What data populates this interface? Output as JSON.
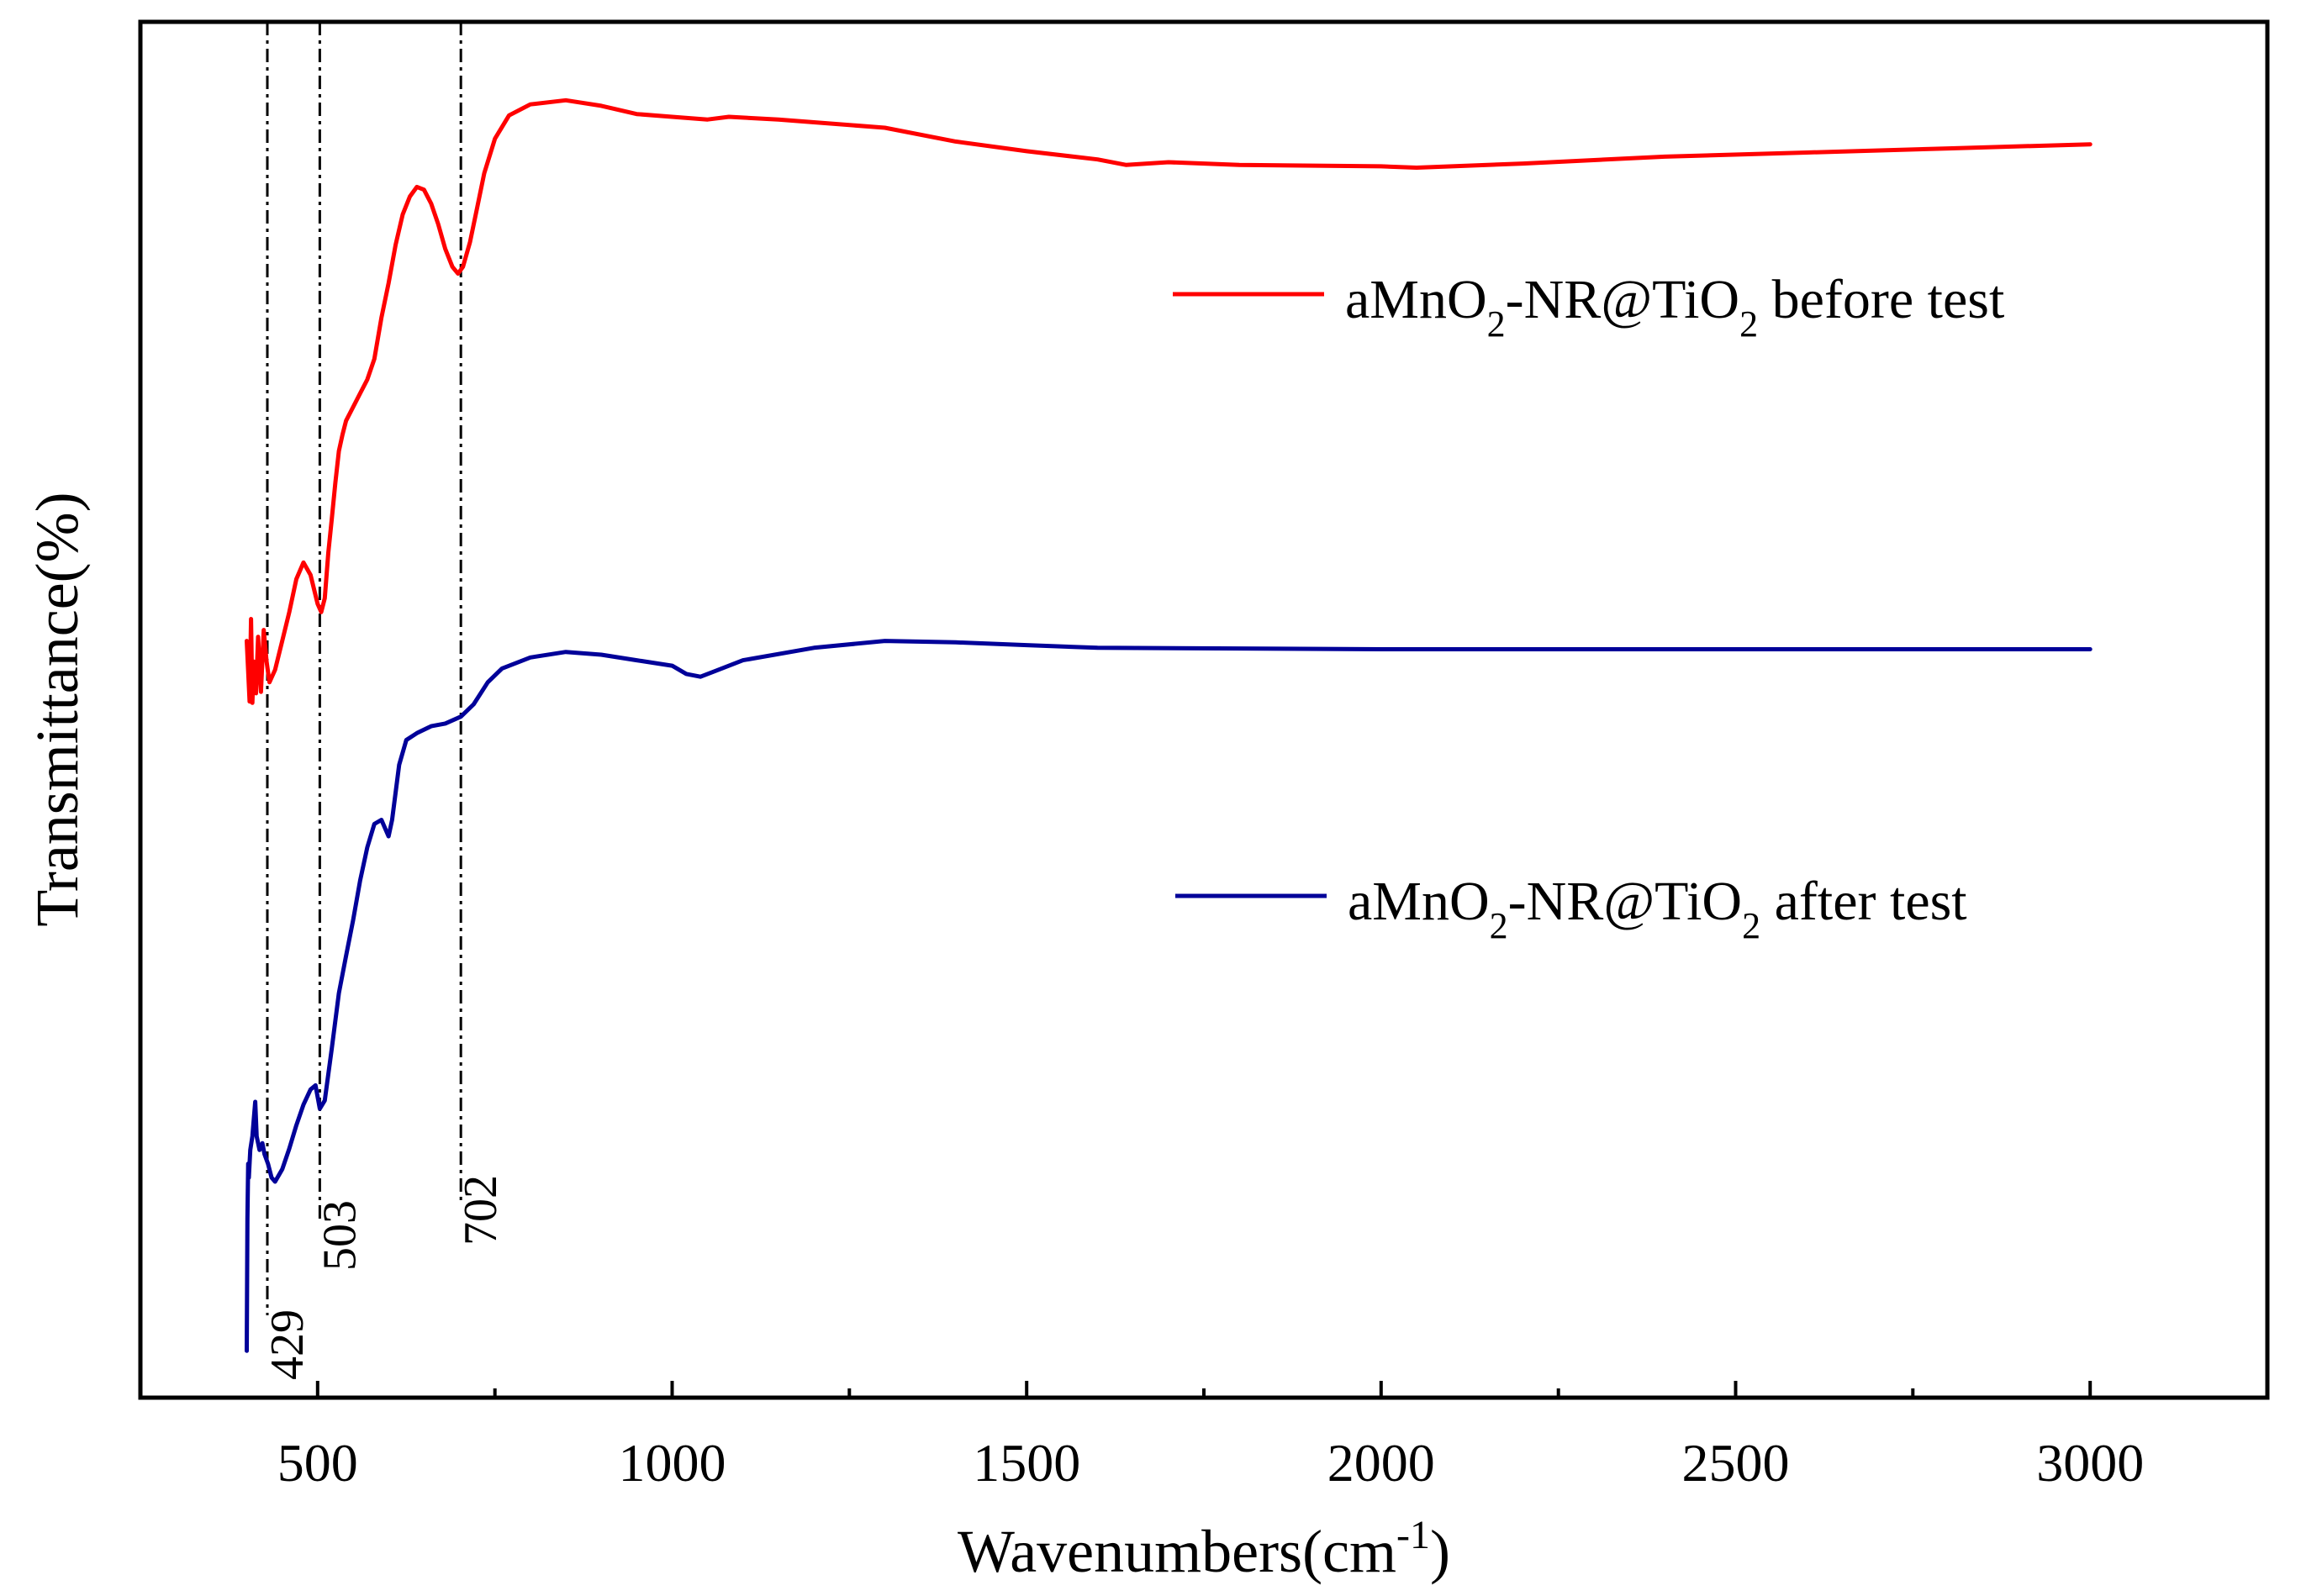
{
  "chart_data": {
    "type": "line",
    "title": "",
    "xlabel": {
      "main": "Wavenumbers(cm",
      "sup": "-1",
      "close": ")"
    },
    "ylabel": "Transmittance(%)",
    "xlim": [
      250,
      3250
    ],
    "ylim": [
      0,
      100
    ],
    "x_ticks": [
      500,
      1000,
      1500,
      2000,
      2500,
      3000
    ],
    "x_tick_labels": [
      "500",
      "1000",
      "1500",
      "2000",
      "2500",
      "3000"
    ],
    "y_ticks_shown": false,
    "grid": false,
    "legend_placement": "right",
    "reference_lines": [
      {
        "x": 429,
        "label": "429"
      },
      {
        "x": 503,
        "label": "503"
      },
      {
        "x": 702,
        "label": "702"
      }
    ],
    "series": [
      {
        "name": "before test",
        "legend": {
          "a": "aMnO",
          "s1": "2",
          "b": "-NR@TiO",
          "s2": "2",
          "c": " before test"
        },
        "color": "#ff0000",
        "points": [
          [
            400,
            55.0
          ],
          [
            404,
            50.6
          ],
          [
            406,
            56.6
          ],
          [
            408,
            50.5
          ],
          [
            410,
            53.5
          ],
          [
            413,
            51.2
          ],
          [
            416,
            55.3
          ],
          [
            420,
            51.3
          ],
          [
            424,
            55.8
          ],
          [
            428,
            53.5
          ],
          [
            432,
            52.0
          ],
          [
            440,
            52.9
          ],
          [
            450,
            55.0
          ],
          [
            460,
            57.1
          ],
          [
            470,
            59.5
          ],
          [
            480,
            60.7
          ],
          [
            490,
            59.8
          ],
          [
            500,
            57.7
          ],
          [
            505,
            57.1
          ],
          [
            510,
            58.1
          ],
          [
            515,
            61.4
          ],
          [
            520,
            63.9
          ],
          [
            525,
            66.5
          ],
          [
            530,
            68.8
          ],
          [
            535,
            70.0
          ],
          [
            540,
            71.0
          ],
          [
            550,
            72.0
          ],
          [
            560,
            73.0
          ],
          [
            570,
            74.0
          ],
          [
            580,
            75.5
          ],
          [
            590,
            78.5
          ],
          [
            600,
            81.0
          ],
          [
            610,
            83.8
          ],
          [
            620,
            86.0
          ],
          [
            630,
            87.3
          ],
          [
            640,
            88.0
          ],
          [
            650,
            87.8
          ],
          [
            660,
            86.8
          ],
          [
            670,
            85.3
          ],
          [
            680,
            83.5
          ],
          [
            690,
            82.2
          ],
          [
            698,
            81.7
          ],
          [
            705,
            82.2
          ],
          [
            715,
            84.0
          ],
          [
            725,
            86.5
          ],
          [
            735,
            89.0
          ],
          [
            750,
            91.5
          ],
          [
            770,
            93.2
          ],
          [
            800,
            94.0
          ],
          [
            850,
            94.3
          ],
          [
            900,
            93.9
          ],
          [
            950,
            93.3
          ],
          [
            1000,
            93.1
          ],
          [
            1050,
            92.9
          ],
          [
            1080,
            93.1
          ],
          [
            1150,
            92.9
          ],
          [
            1200,
            92.7
          ],
          [
            1300,
            92.3
          ],
          [
            1400,
            91.3
          ],
          [
            1500,
            90.6
          ],
          [
            1600,
            90.0
          ],
          [
            1640,
            89.6
          ],
          [
            1700,
            89.8
          ],
          [
            1800,
            89.6
          ],
          [
            2000,
            89.5
          ],
          [
            2050,
            89.4
          ],
          [
            2100,
            89.5
          ],
          [
            2200,
            89.7
          ],
          [
            2400,
            90.2
          ],
          [
            2600,
            90.5
          ],
          [
            2800,
            90.8
          ],
          [
            3000,
            91.1
          ]
        ]
      },
      {
        "name": "after test",
        "legend": {
          "a": "aMnO",
          "s1": "2",
          "b": "-NR@TiO",
          "s2": "2",
          "c": " after test"
        },
        "color": "#000099",
        "points": [
          [
            400,
            3.4
          ],
          [
            401,
            13.0
          ],
          [
            402,
            17.0
          ],
          [
            403,
            16.0
          ],
          [
            405,
            18.0
          ],
          [
            408,
            19.0
          ],
          [
            412,
            21.5
          ],
          [
            414,
            19.0
          ],
          [
            418,
            18.0
          ],
          [
            422,
            18.5
          ],
          [
            425,
            17.7
          ],
          [
            430,
            17.0
          ],
          [
            435,
            16.0
          ],
          [
            440,
            15.7
          ],
          [
            450,
            16.6
          ],
          [
            460,
            18.1
          ],
          [
            470,
            19.8
          ],
          [
            480,
            21.3
          ],
          [
            490,
            22.4
          ],
          [
            497,
            22.7
          ],
          [
            503,
            21.0
          ],
          [
            510,
            21.6
          ],
          [
            520,
            25.4
          ],
          [
            530,
            29.4
          ],
          [
            540,
            32.1
          ],
          [
            550,
            34.7
          ],
          [
            560,
            37.6
          ],
          [
            570,
            40.0
          ],
          [
            580,
            41.7
          ],
          [
            590,
            42.0
          ],
          [
            600,
            40.8
          ],
          [
            605,
            42.0
          ],
          [
            615,
            46.0
          ],
          [
            625,
            47.8
          ],
          [
            640,
            48.3
          ],
          [
            660,
            48.8
          ],
          [
            680,
            49.0
          ],
          [
            702,
            49.5
          ],
          [
            720,
            50.4
          ],
          [
            740,
            52.0
          ],
          [
            760,
            53.0
          ],
          [
            800,
            53.8
          ],
          [
            850,
            54.2
          ],
          [
            900,
            54.0
          ],
          [
            950,
            53.6
          ],
          [
            1000,
            53.2
          ],
          [
            1020,
            52.6
          ],
          [
            1040,
            52.4
          ],
          [
            1060,
            52.8
          ],
          [
            1100,
            53.6
          ],
          [
            1200,
            54.5
          ],
          [
            1300,
            55.0
          ],
          [
            1400,
            54.9
          ],
          [
            1500,
            54.7
          ],
          [
            1600,
            54.5
          ],
          [
            2000,
            54.4
          ],
          [
            2500,
            54.4
          ],
          [
            3000,
            54.4
          ]
        ]
      }
    ]
  }
}
